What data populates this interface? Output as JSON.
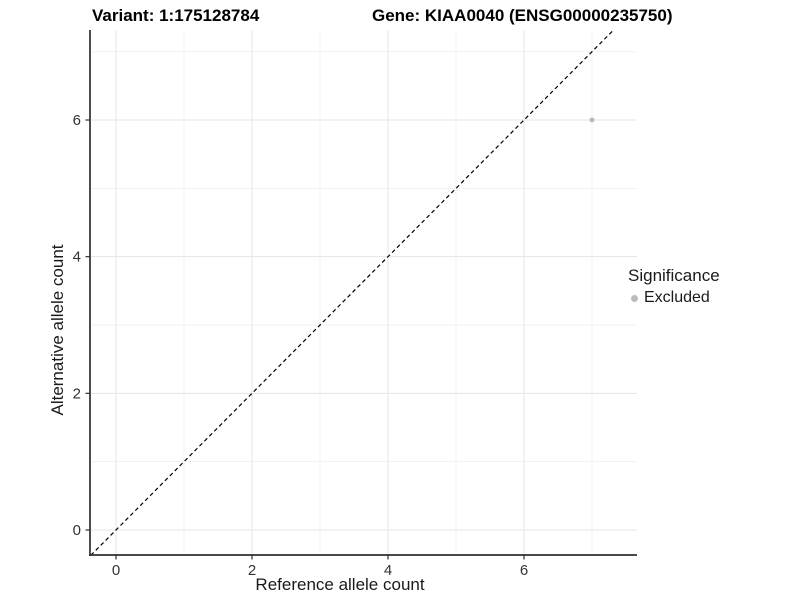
{
  "header": {
    "variant_title": "Variant: 1:175128784",
    "gene_title": "Gene: KIAA0040 (ENSG00000235750)"
  },
  "axes": {
    "x_label": "Reference allele count",
    "y_label": "Alternative allele count",
    "x_ticks": [
      "0",
      "2",
      "4",
      "6"
    ],
    "y_ticks": [
      "0",
      "2",
      "4",
      "6"
    ]
  },
  "legend": {
    "title": "Significance",
    "items": [
      {
        "label": "Excluded",
        "color": "#bcbcbc"
      }
    ]
  },
  "chart_data": {
    "type": "scatter",
    "title": "Variant: 1:175128784    Gene: KIAA0040 (ENSG00000235750)",
    "xlabel": "Reference allele count",
    "ylabel": "Alternative allele count",
    "xlim": [
      -0.38,
      7.65
    ],
    "ylim": [
      -0.37,
      7.32
    ],
    "x_major_ticks": [
      0,
      2,
      4,
      6
    ],
    "x_minor_ticks": [
      1,
      3,
      5,
      7
    ],
    "y_major_ticks": [
      0,
      2,
      4,
      6
    ],
    "y_minor_ticks": [
      1,
      3,
      5,
      7
    ],
    "grid": "major+minor",
    "legend_position": "right-middle",
    "series": [
      {
        "name": "Excluded",
        "color": "#bcbcbc",
        "point_radius": 2.5,
        "points": [
          {
            "x": 7,
            "y": 6
          }
        ]
      }
    ],
    "reference_line": {
      "kind": "identity y=x",
      "style": "dashed",
      "color": "#000000"
    },
    "colors": {
      "background": "#ffffff",
      "grid_major": "#e5e5e5",
      "grid_minor": "#f1f1f1",
      "axis": "#2f2f2f",
      "tick_label": "#333333",
      "point": "#bcbcbc"
    }
  }
}
